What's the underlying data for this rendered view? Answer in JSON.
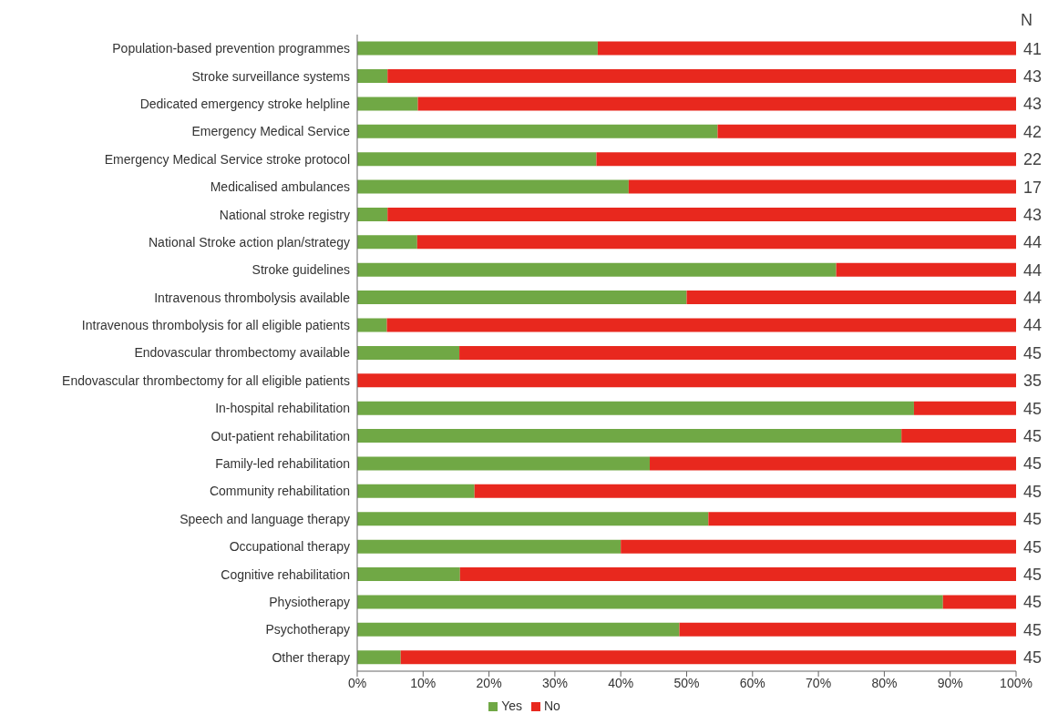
{
  "chart_data": {
    "type": "bar",
    "orientation": "horizontal",
    "stacked": true,
    "categories": [
      "Population-based prevention programmes",
      "Stroke surveillance systems",
      "Dedicated emergency stroke helpline",
      "Emergency Medical Service",
      "Emergency Medical Service stroke protocol",
      "Medicalised ambulances",
      "National stroke registry",
      "National Stroke action plan/strategy",
      "Stroke guidelines",
      "Intravenous thrombolysis available",
      "Intravenous thrombolysis for all eligible patients",
      "Endovascular thrombectomy available",
      "Endovascular thrombectomy for all eligible patients",
      "In-hospital rehabilitation",
      "Out-patient rehabilitation",
      "Family-led rehabilitation",
      "Community rehabilitation",
      "Speech and language therapy",
      "Occupational therapy",
      "Cognitive rehabilitation",
      "Physiotherapy",
      "Psychotherapy",
      "Other therapy"
    ],
    "series": [
      {
        "name": "Yes",
        "color": "#70a845",
        "values": [
          36.5,
          4.6,
          9.2,
          54.7,
          36.3,
          41.2,
          4.6,
          9.1,
          72.7,
          50,
          4.5,
          15.5,
          0,
          84.5,
          82.6,
          44.4,
          17.8,
          53.3,
          40,
          15.6,
          88.9,
          48.9,
          6.6
        ]
      },
      {
        "name": "No",
        "color": "#e8281e",
        "values": [
          63.5,
          95.4,
          90.8,
          45.3,
          63.7,
          58.8,
          95.4,
          90.9,
          27.3,
          50,
          95.5,
          84.5,
          100,
          15.5,
          17.4,
          55.6,
          82.2,
          46.7,
          60,
          84.4,
          11.1,
          51.1,
          93.4
        ]
      }
    ],
    "xlim": [
      0,
      100
    ],
    "xticks": [
      {
        "value": 0,
        "label": "0%"
      },
      {
        "value": 10,
        "label": "10%"
      },
      {
        "value": 20,
        "label": "20%"
      },
      {
        "value": 30,
        "label": "30%"
      },
      {
        "value": 40,
        "label": "40%"
      },
      {
        "value": 50,
        "label": "50%"
      },
      {
        "value": 60,
        "label": "60%"
      },
      {
        "value": 70,
        "label": "70%"
      },
      {
        "value": 80,
        "label": "80%"
      },
      {
        "value": 90,
        "label": "90%"
      },
      {
        "value": 100,
        "label": "100%"
      }
    ],
    "legend": "bottom",
    "annotations": [
      "N",
      "41",
      "43",
      "43",
      "42",
      "22",
      "17",
      "43",
      "44",
      "44",
      "44",
      "44",
      "45",
      "35",
      "45",
      "45",
      "45",
      "45",
      "45",
      "45",
      "45",
      "45",
      "45",
      "45"
    ]
  }
}
